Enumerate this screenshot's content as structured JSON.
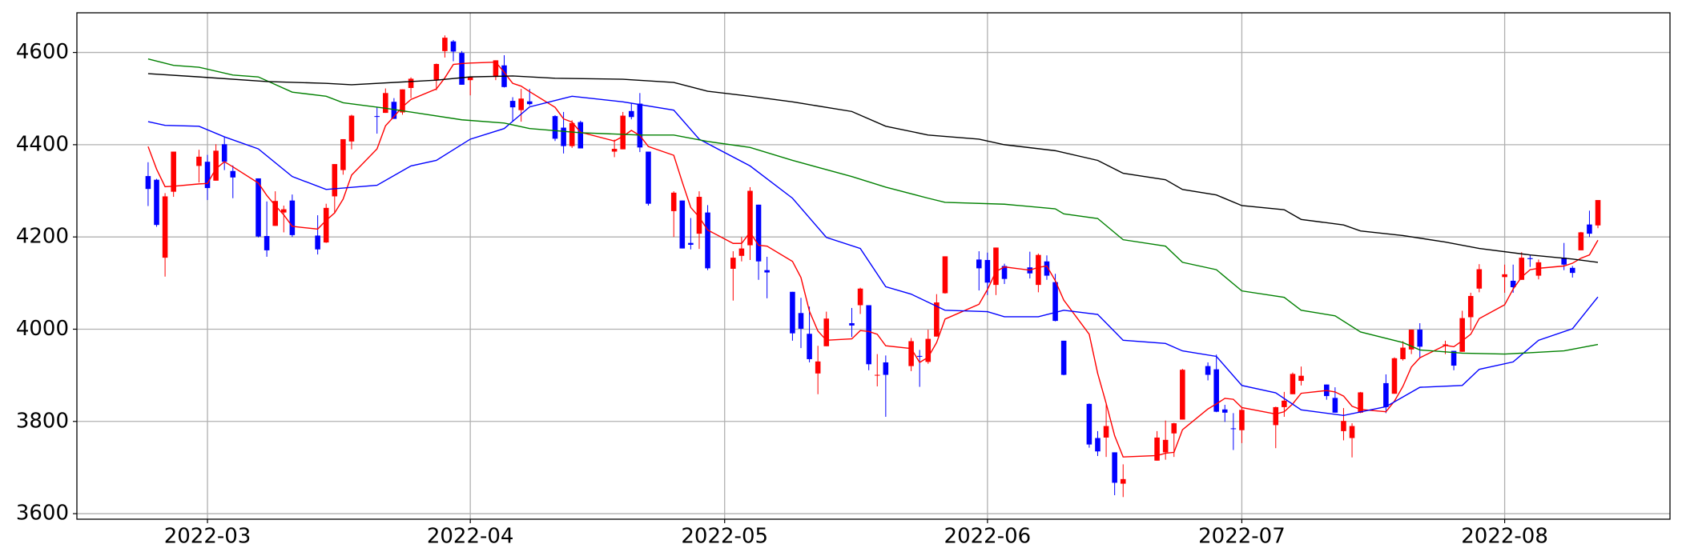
{
  "chart_data": {
    "type": "candlestick",
    "x": [
      53,
      54,
      55,
      56,
      59,
      60,
      61,
      62,
      63,
      66,
      67,
      68,
      69,
      70,
      73,
      74,
      75,
      76,
      77,
      80,
      81,
      82,
      83,
      84,
      87,
      88,
      89,
      90,
      91,
      94,
      95,
      96,
      97,
      98,
      101,
      102,
      103,
      104,
      108,
      109,
      110,
      111,
      112,
      115,
      116,
      117,
      118,
      119,
      122,
      123,
      124,
      125,
      126,
      129,
      130,
      131,
      132,
      133,
      136,
      137,
      138,
      139,
      140,
      143,
      144,
      145,
      146,
      147,
      151,
      152,
      153,
      154,
      157,
      158,
      159,
      160,
      161,
      164,
      165,
      166,
      167,
      168,
      172,
      173,
      174,
      175,
      178,
      179,
      180,
      181,
      182,
      186,
      187,
      188,
      189,
      192,
      193,
      194,
      195,
      196,
      199,
      200,
      201,
      202,
      203,
      206,
      207,
      208,
      209,
      210,
      213,
      214,
      215,
      216,
      217,
      220,
      221,
      222,
      223,
      224
    ],
    "open": [
      4332,
      4324,
      4155,
      4298,
      4354,
      4363,
      4322,
      4401,
      4343,
      4327,
      4202,
      4224,
      4253,
      4279,
      4203,
      4188,
      4288,
      4345,
      4407,
      4462,
      4469,
      4493,
      4470,
      4523,
      4541,
      4603,
      4624,
      4599,
      4540,
      4547,
      4572,
      4495,
      4475,
      4494,
      4462,
      4437,
      4397,
      4449,
      4385,
      4390,
      4473,
      4489,
      4385,
      4256,
      4279,
      4187,
      4207,
      4253,
      4131,
      4159,
      4182,
      4270,
      4128,
      4081,
      4035,
      3990,
      3904,
      3963,
      4013,
      4052,
      4052,
      3900,
      3928,
      3920,
      3942,
      3929,
      3984,
      4078,
      4151,
      4150,
      4096,
      4137,
      4134,
      4096,
      4147,
      4102,
      3975,
      3838,
      3764,
      3765,
      3733,
      3665,
      3715,
      3733,
      3774,
      3804,
      3920,
      3913,
      3826,
      3785,
      3781,
      3792,
      3831,
      3859,
      3888,
      3880,
      3851,
      3779,
      3764,
      3819,
      3883,
      3860,
      3935,
      3956,
      3999,
      3965,
      3953,
      3951,
      4026,
      4088,
      4113,
      4105,
      4107,
      4154,
      4116,
      4155,
      4133,
      4171,
      4227,
      4225
    ],
    "high": [
      4362,
      4326,
      4295,
      4385,
      4389,
      4378,
      4401,
      4416,
      4355,
      4327,
      4277,
      4299,
      4268,
      4292,
      4247,
      4272,
      4358,
      4412,
      4465,
      4481,
      4522,
      4501,
      4520,
      4546,
      4576,
      4637,
      4627,
      4603,
      4548,
      4583,
      4594,
      4503,
      4521,
      4521,
      4464,
      4471,
      4453,
      4452,
      4411,
      4471,
      4489,
      4512,
      4385,
      4299,
      4279,
      4241,
      4299,
      4269,
      4169,
      4200,
      4308,
      4270,
      4157,
      4081,
      4068,
      4049,
      3964,
      4038,
      4046,
      4090,
      4052,
      3946,
      3943,
      3981,
      3955,
      3999,
      4076,
      4158,
      4169,
      4166,
      4177,
      4142,
      4168,
      4164,
      4160,
      4120,
      3975,
      3839,
      3779,
      3838,
      3733,
      3707,
      3779,
      3802,
      3797,
      3914,
      3928,
      3945,
      3836,
      3818,
      3829,
      3832,
      3864,
      3906,
      3919,
      3880,
      3874,
      3829,
      3796,
      3864,
      3902,
      3939,
      3974,
      3999,
      4013,
      3975,
      3953,
      4040,
      4079,
      4141,
      4140,
      4140,
      4167,
      4161,
      4151,
      4187,
      4137,
      4211,
      4257,
      4280
    ],
    "low": [
      4267,
      4222,
      4114,
      4287,
      4318,
      4280,
      4322,
      4345,
      4284,
      4199,
      4157,
      4224,
      4210,
      4200,
      4162,
      4187,
      4251,
      4335,
      4390,
      4424,
      4469,
      4456,
      4465,
      4501,
      4518,
      4589,
      4581,
      4530,
      4507,
      4540,
      4524,
      4450,
      4450,
      4485,
      4408,
      4381,
      4393,
      4392,
      4373,
      4390,
      4455,
      4384,
      4268,
      4200,
      4175,
      4173,
      4174,
      4128,
      4062,
      4147,
      4150,
      4107,
      4067,
      3975,
      3959,
      3928,
      3859,
      3963,
      3983,
      4033,
      3911,
      3876,
      3810,
      3909,
      3875,
      3925,
      3984,
      4077,
      4084,
      4074,
      4074,
      4098,
      4110,
      4080,
      4107,
      4017,
      3900,
      3743,
      3725,
      3723,
      3640,
      3636,
      3715,
      3717,
      3723,
      3804,
      3889,
      3820,
      3799,
      3738,
      3753,
      3742,
      3810,
      3859,
      3878,
      3847,
      3819,
      3759,
      3722,
      3818,
      3818,
      3860,
      3932,
      3946,
      3938,
      3946,
      3911,
      3951,
      3997,
      4080,
      4079,
      4079,
      4107,
      4135,
      4108,
      4128,
      4112,
      4171,
      4200,
      4219
    ],
    "close": [
      4304,
      4226,
      4288,
      4385,
      4374,
      4306,
      4387,
      4363,
      4329,
      4201,
      4171,
      4278,
      4260,
      4204,
      4173,
      4263,
      4358,
      4412,
      4463,
      4461,
      4512,
      4456,
      4520,
      4543,
      4575,
      4632,
      4602,
      4530,
      4546,
      4583,
      4525,
      4481,
      4500,
      4488,
      4413,
      4397,
      4447,
      4392,
      4391,
      4463,
      4460,
      4394,
      4272,
      4296,
      4175,
      4183,
      4287,
      4132,
      4155,
      4175,
      4300,
      4147,
      4123,
      3991,
      4001,
      3935,
      3930,
      4023,
      4008,
      4088,
      3924,
      3901,
      3901,
      3974,
      3941,
      3979,
      4058,
      4158,
      4132,
      4101,
      4177,
      4109,
      4121,
      4161,
      4116,
      4018,
      3901,
      3750,
      3735,
      3790,
      3667,
      3675,
      3765,
      3760,
      3796,
      3912,
      3901,
      3821,
      3819,
      3785,
      3825,
      3831,
      3845,
      3903,
      3899,
      3855,
      3819,
      3801,
      3790,
      3863,
      3831,
      3937,
      3960,
      3999,
      3962,
      3967,
      3921,
      4024,
      4072,
      4130,
      4119,
      4091,
      4155,
      4152,
      4145,
      4140,
      4122,
      4210,
      4207,
      4280
    ],
    "up_color": "#ff0000",
    "down_color": "#0000ff",
    "lines": [
      {
        "color": "#ff0000",
        "x": [
          53,
          54,
          55,
          56,
          59,
          60,
          61,
          62,
          63,
          66,
          67,
          68,
          69,
          70,
          73,
          74,
          75,
          76,
          77,
          80,
          81,
          82,
          83,
          84,
          87,
          88,
          89,
          90,
          91,
          94,
          95,
          96,
          97,
          98,
          101,
          102,
          103,
          104,
          108,
          109,
          110,
          111,
          112,
          115,
          116,
          117,
          118,
          119,
          122,
          123,
          124,
          125,
          126,
          129,
          130,
          131,
          132,
          133,
          136,
          137,
          138,
          139,
          140,
          143,
          144,
          145,
          146,
          147,
          151,
          152,
          153,
          154,
          157,
          158,
          159,
          160,
          161,
          164,
          165,
          166,
          167,
          168,
          172,
          173,
          174,
          175,
          178,
          179,
          180,
          181,
          182,
          186,
          187,
          188,
          189,
          192,
          193,
          194,
          195,
          196,
          199,
          200,
          201,
          202,
          203,
          206,
          207,
          208,
          209,
          210,
          213,
          214,
          215,
          216,
          217,
          220,
          221,
          222,
          223,
          224
        ],
        "values": [
          4396,
          4347,
          4309,
          4310,
          4315,
          4316,
          4348,
          4363,
          4352,
          4317,
          4290,
          4268,
          4248,
          4223,
          4217,
          4236,
          4252,
          4282,
          4334,
          4391,
          4441,
          4461,
          4482,
          4498,
          4521,
          4545,
          4574,
          4576,
          4577,
          4579,
          4557,
          4533,
          4527,
          4515,
          4481,
          4456,
          4449,
          4427,
          4408,
          4418,
          4431,
          4420,
          4396,
          4377,
          4319,
          4264,
          4243,
          4215,
          4186,
          4186,
          4210,
          4182,
          4180,
          4147,
          4112,
          4039,
          3996,
          3976,
          3979,
          3997,
          3995,
          3989,
          3964,
          3958,
          3928,
          3939,
          3971,
          4022,
          4054,
          4086,
          4125,
          4135,
          4128,
          4134,
          4137,
          4105,
          4063,
          3989,
          3904,
          3839,
          3769,
          3723,
          3726,
          3731,
          3733,
          3782,
          3827,
          3838,
          3850,
          3848,
          3830,
          3816,
          3821,
          3838,
          3861,
          3867,
          3864,
          3855,
          3833,
          3826,
          3821,
          3844,
          3876,
          3918,
          3938,
          3965,
          3962,
          3975,
          3989,
          4023,
          4053,
          4087,
          4113,
          4129,
          4132,
          4137,
          4143,
          4154,
          4161,
          4193
        ]
      },
      {
        "color": "#0000ff",
        "x": [
          53,
          55,
          59,
          62,
          66,
          70,
          74,
          80,
          84,
          87,
          91,
          95,
          98,
          103,
          109,
          115,
          118,
          124,
          129,
          133,
          137,
          140,
          143,
          147,
          152,
          154,
          158,
          161,
          165,
          168,
          173,
          175,
          179,
          182,
          186,
          189,
          194,
          199,
          203,
          208,
          210,
          214,
          217,
          221,
          224
        ],
        "values": [
          4450,
          4442,
          4440,
          4417,
          4391,
          4331,
          4303,
          4312,
          4354,
          4366,
          4412,
          4435,
          4482,
          4505,
          4493,
          4475,
          4412,
          4354,
          4284,
          4199,
          4175,
          4092,
          4076,
          4041,
          4038,
          4027,
          4027,
          4041,
          4032,
          3976,
          3969,
          3953,
          3941,
          3878,
          3862,
          3825,
          3813,
          3832,
          3874,
          3878,
          3913,
          3929,
          3976,
          4001,
          4070
        ]
      },
      {
        "color": "#008000",
        "x": [
          53,
          56,
          59,
          63,
          66,
          70,
          74,
          76,
          81,
          85,
          90,
          95,
          98,
          104,
          111,
          115,
          119,
          124,
          129,
          136,
          140,
          145,
          147,
          154,
          160,
          161,
          165,
          168,
          173,
          175,
          179,
          182,
          187,
          189,
          193,
          196,
          201,
          203,
          208,
          213,
          220,
          224
        ],
        "values": [
          4586,
          4572,
          4568,
          4551,
          4547,
          4514,
          4505,
          4491,
          4479,
          4468,
          4454,
          4447,
          4435,
          4426,
          4421,
          4421,
          4407,
          4394,
          4366,
          4331,
          4308,
          4284,
          4275,
          4271,
          4261,
          4250,
          4240,
          4194,
          4180,
          4145,
          4129,
          4083,
          4069,
          4041,
          4029,
          3994,
          3971,
          3955,
          3948,
          3946,
          3953,
          3967
        ]
      },
      {
        "color": "#000000",
        "x": [
          53,
          59,
          67,
          74,
          77,
          87,
          91,
          96,
          101,
          109,
          115,
          119,
          124,
          129,
          136,
          140,
          145,
          151,
          154,
          160,
          165,
          168,
          173,
          175,
          179,
          182,
          187,
          189,
          194,
          196,
          201,
          206,
          210,
          216,
          221,
          224
        ],
        "values": [
          4554,
          4547,
          4537,
          4533,
          4530,
          4540,
          4547,
          4549,
          4544,
          4542,
          4535,
          4516,
          4505,
          4493,
          4472,
          4440,
          4421,
          4412,
          4400,
          4387,
          4366,
          4338,
          4324,
          4303,
          4291,
          4268,
          4259,
          4238,
          4226,
          4213,
          4203,
          4189,
          4175,
          4161,
          4152,
          4145
        ]
      }
    ],
    "xlim": [
      44.6,
      232.5
    ],
    "xticks": [
      {
        "value": 60,
        "label": "2022-03"
      },
      {
        "value": 91,
        "label": "2022-04"
      },
      {
        "value": 121,
        "label": "2022-05"
      },
      {
        "value": 152,
        "label": "2022-06"
      },
      {
        "value": 182,
        "label": "2022-07"
      },
      {
        "value": 213,
        "label": "2022-08"
      }
    ],
    "ylim": [
      3588,
      4686
    ],
    "yticks": [
      3600,
      3800,
      4000,
      4200,
      4400,
      4600
    ],
    "grid": true
  }
}
